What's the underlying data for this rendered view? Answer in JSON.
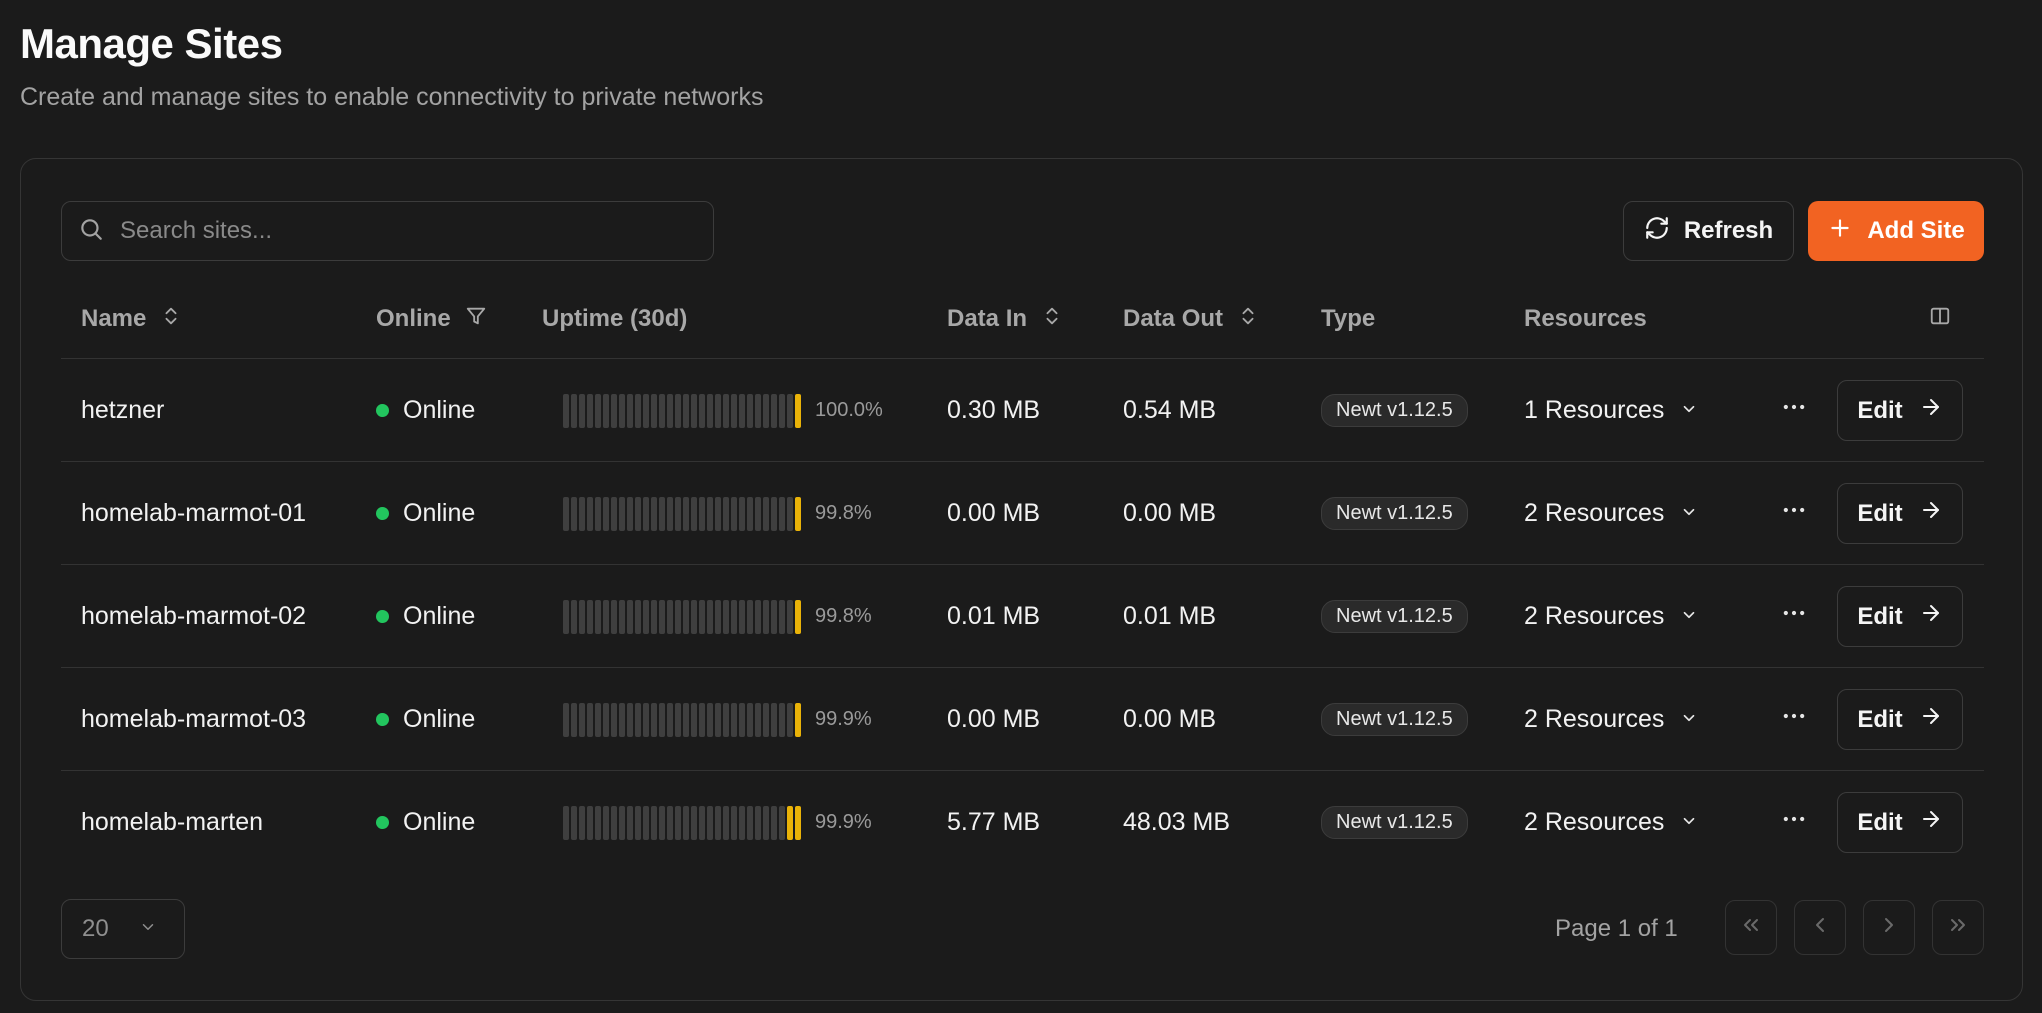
{
  "header": {
    "title": "Manage Sites",
    "subtitle": "Create and manage sites to enable connectivity to private networks"
  },
  "toolbar": {
    "search_placeholder": "Search sites...",
    "refresh_label": "Refresh",
    "add_label": "Add Site"
  },
  "columns": {
    "name": "Name",
    "online": "Online",
    "uptime": "Uptime (30d)",
    "data_in": "Data In",
    "data_out": "Data Out",
    "type": "Type",
    "resources": "Resources"
  },
  "rows": [
    {
      "name": "hetzner",
      "status": "Online",
      "uptime": "100.0%",
      "data_in": "0.30 MB",
      "data_out": "0.54 MB",
      "type": "Newt v1.12.5",
      "resources": "1 Resources",
      "action": "Edit",
      "recent_up_bars": 1
    },
    {
      "name": "homelab-marmot-01",
      "status": "Online",
      "uptime": "99.8%",
      "data_in": "0.00 MB",
      "data_out": "0.00 MB",
      "type": "Newt v1.12.5",
      "resources": "2 Resources",
      "action": "Edit",
      "recent_up_bars": 1
    },
    {
      "name": "homelab-marmot-02",
      "status": "Online",
      "uptime": "99.8%",
      "data_in": "0.01 MB",
      "data_out": "0.01 MB",
      "type": "Newt v1.12.5",
      "resources": "2 Resources",
      "action": "Edit",
      "recent_up_bars": 1
    },
    {
      "name": "homelab-marmot-03",
      "status": "Online",
      "uptime": "99.9%",
      "data_in": "0.00 MB",
      "data_out": "0.00 MB",
      "type": "Newt v1.12.5",
      "resources": "2 Resources",
      "action": "Edit",
      "recent_up_bars": 1
    },
    {
      "name": "homelab-marten",
      "status": "Online",
      "uptime": "99.9%",
      "data_in": "5.77 MB",
      "data_out": "48.03 MB",
      "type": "Newt v1.12.5",
      "resources": "2 Resources",
      "action": "Edit",
      "recent_up_bars": 2
    }
  ],
  "pagination": {
    "page_size": "20",
    "page_info": "Page 1 of 1"
  },
  "colors": {
    "accent": "#f26322",
    "online": "#22c55e",
    "uptime_bar": "#eab308"
  }
}
